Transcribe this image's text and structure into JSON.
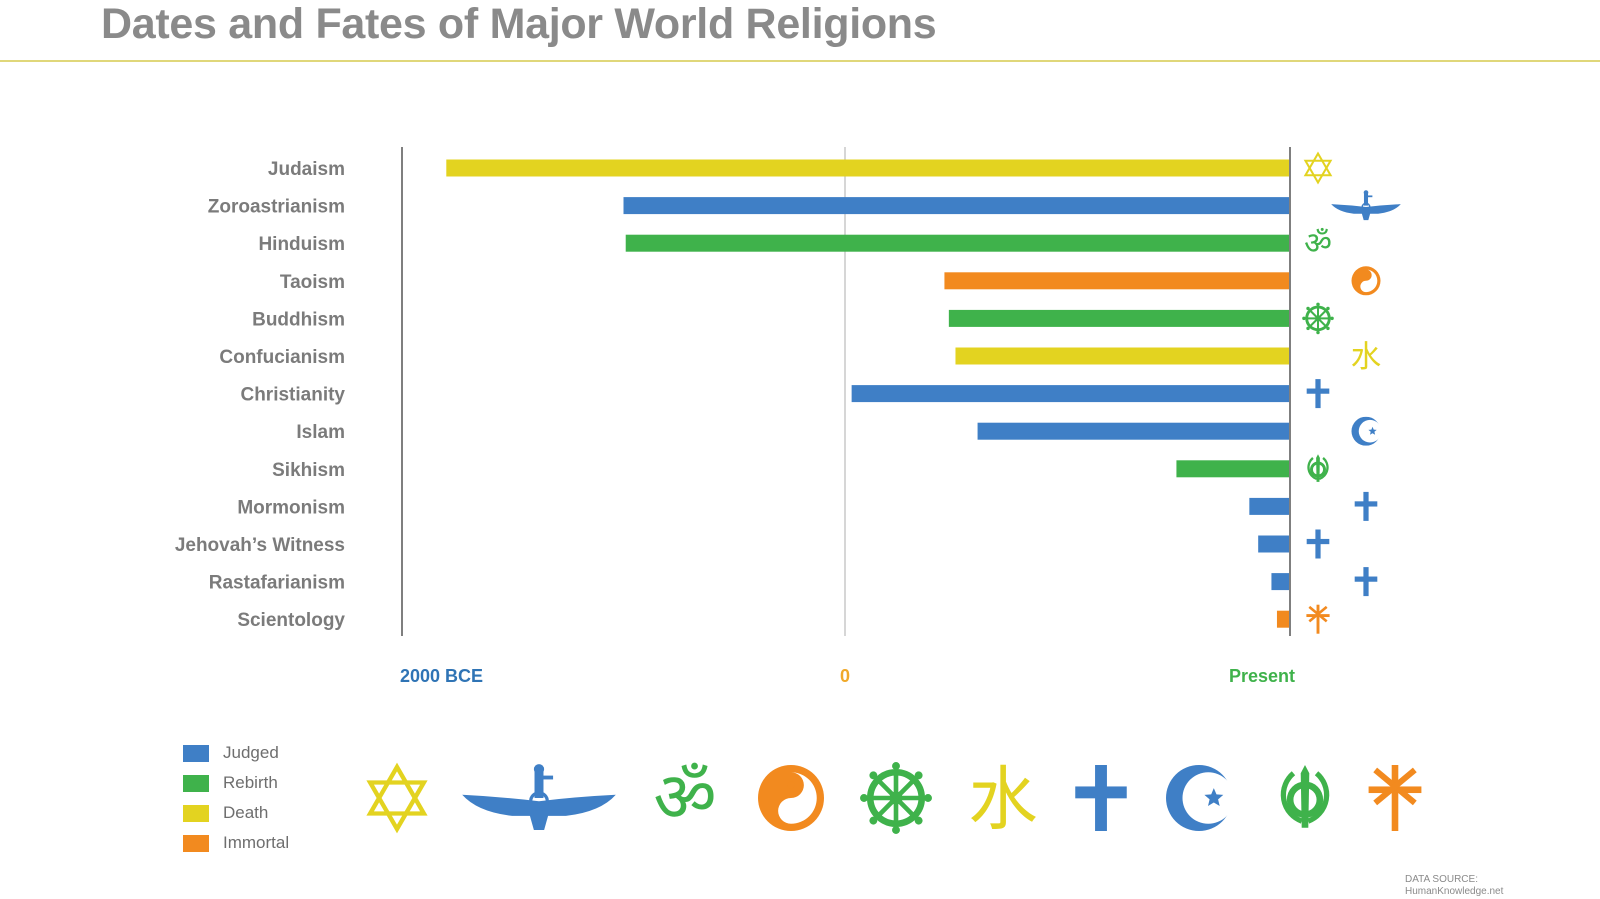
{
  "title": "Dates and Fates of Major World Religions",
  "colors": {
    "Judged": "#3f7fc6",
    "Rebirth": "#3fb24b",
    "Death": "#e3d320",
    "Immortal": "#f28a1f"
  },
  "legend": [
    {
      "label": "Judged",
      "fate": "Judged"
    },
    {
      "label": "Rebirth",
      "fate": "Rebirth"
    },
    {
      "label": "Death",
      "fate": "Death"
    },
    {
      "label": "Immortal",
      "fate": "Immortal"
    }
  ],
  "symbols_row": [
    {
      "icon": "star-of-david-icon",
      "fate": "Death"
    },
    {
      "icon": "faravahar-icon",
      "fate": "Judged"
    },
    {
      "icon": "om-icon",
      "fate": "Rebirth"
    },
    {
      "icon": "yin-yang-icon",
      "fate": "Immortal"
    },
    {
      "icon": "dharma-wheel-icon",
      "fate": "Rebirth"
    },
    {
      "icon": "water-character-icon",
      "fate": "Death"
    },
    {
      "icon": "cross-icon",
      "fate": "Judged"
    },
    {
      "icon": "crescent-star-icon",
      "fate": "Judged"
    },
    {
      "icon": "khanda-icon",
      "fate": "Rebirth"
    },
    {
      "icon": "scientology-cross-icon",
      "fate": "Immortal"
    }
  ],
  "source": {
    "line1": "DATA SOURCE:",
    "line2": "HumanKnowledge.net"
  },
  "chart_data": {
    "type": "bar",
    "orientation": "horizontal",
    "x_tick_labels": [
      {
        "label": "2000 BCE",
        "value": -2000,
        "color": "#2f74b5"
      },
      {
        "label": "0",
        "value": 0,
        "color": "#f0a92a"
      },
      {
        "label": "Present",
        "value": 2014,
        "color": "#3fb24b"
      }
    ],
    "xlim": [
      -2000,
      2014
    ],
    "present_year": 2014,
    "categories": [
      "Judaism",
      "Zoroastrianism",
      "Hinduism",
      "Taoism",
      "Buddhism",
      "Confucianism",
      "Christianity",
      "Islam",
      "Sikhism",
      "Mormonism",
      "Jehovah’s Witness",
      "Rastafarianism",
      "Scientology"
    ],
    "start_year": [
      -1800,
      -1000,
      -990,
      450,
      470,
      500,
      30,
      600,
      1500,
      1830,
      1870,
      1930,
      1955
    ],
    "fate": [
      "Death",
      "Judged",
      "Rebirth",
      "Immortal",
      "Rebirth",
      "Death",
      "Judged",
      "Judged",
      "Rebirth",
      "Judged",
      "Judged",
      "Judged",
      "Immortal"
    ],
    "row_icons": [
      "star-of-david-icon",
      "faravahar-icon",
      "om-icon",
      "yin-yang-icon",
      "dharma-wheel-icon",
      "water-character-icon",
      "cross-icon",
      "crescent-star-icon",
      "khanda-icon",
      "cross-icon",
      "cross-icon",
      "cross-icon",
      "scientology-cross-icon"
    ],
    "legend_position": "bottom-left"
  }
}
